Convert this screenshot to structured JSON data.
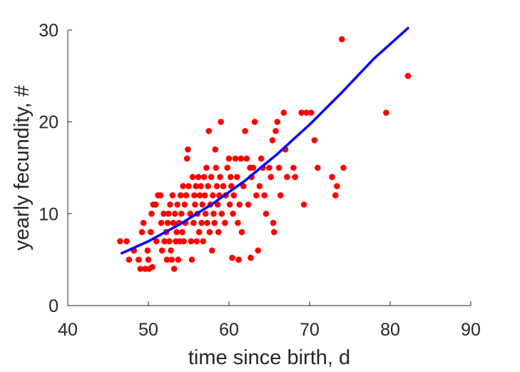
{
  "chart_data": {
    "type": "scatter",
    "xlabel": "time since birth, d",
    "ylabel": "yearly fecundity, #",
    "xlim": [
      40,
      90
    ],
    "ylim": [
      0,
      30
    ],
    "xticks": [
      40,
      50,
      60,
      70,
      80,
      90
    ],
    "yticks": [
      0,
      10,
      20,
      30
    ],
    "grid": false,
    "colors": {
      "points": "#ff0000",
      "fit": "#0000ff",
      "axes": "#262626"
    },
    "series": [
      {
        "type": "scatter",
        "points": [
          [
            46.5,
            7.0
          ],
          [
            47.3,
            7.0
          ],
          [
            47.6,
            5.0
          ],
          [
            48.2,
            6.0
          ],
          [
            48.8,
            5.0
          ],
          [
            49.0,
            4.0
          ],
          [
            49.2,
            8.0
          ],
          [
            49.4,
            9.0
          ],
          [
            49.6,
            4.0
          ],
          [
            49.9,
            6.0
          ],
          [
            50.1,
            4.0
          ],
          [
            50.0,
            5.0
          ],
          [
            50.3,
            8.0
          ],
          [
            50.5,
            4.2
          ],
          [
            50.4,
            10.0
          ],
          [
            50.6,
            11.0
          ],
          [
            50.9,
            11.0
          ],
          [
            51.0,
            7.0
          ],
          [
            51.2,
            12.0
          ],
          [
            51.5,
            12.0
          ],
          [
            51.6,
            9.0
          ],
          [
            51.7,
            6.0
          ],
          [
            51.9,
            10.0
          ],
          [
            52.0,
            7.0
          ],
          [
            52.2,
            8.0
          ],
          [
            52.3,
            5.0
          ],
          [
            52.4,
            9.0
          ],
          [
            52.5,
            10.0
          ],
          [
            52.6,
            7.0
          ],
          [
            52.7,
            11.0
          ],
          [
            52.8,
            6.0
          ],
          [
            52.9,
            5.0
          ],
          [
            53.0,
            12.0
          ],
          [
            53.1,
            9.0
          ],
          [
            53.2,
            4.0
          ],
          [
            53.3,
            10.0
          ],
          [
            53.4,
            7.0
          ],
          [
            53.5,
            8.0
          ],
          [
            53.6,
            11.0
          ],
          [
            53.7,
            5.0
          ],
          [
            53.8,
            9.0
          ],
          [
            53.9,
            7.0
          ],
          [
            54.0,
            12.0
          ],
          [
            54.1,
            10.0
          ],
          [
            54.2,
            8.0
          ],
          [
            54.3,
            13.0
          ],
          [
            54.4,
            7.0
          ],
          [
            54.5,
            11.0
          ],
          [
            54.6,
            9.0
          ],
          [
            54.7,
            12.0
          ],
          [
            54.8,
            16.0
          ],
          [
            54.9,
            17.0
          ],
          [
            55.0,
            13.0
          ],
          [
            55.2,
            10.0
          ],
          [
            55.3,
            7.0
          ],
          [
            55.4,
            5.0
          ],
          [
            55.5,
            14.0
          ],
          [
            55.6,
            9.0
          ],
          [
            55.7,
            12.0
          ],
          [
            55.8,
            11.0
          ],
          [
            55.9,
            13.0
          ],
          [
            56.0,
            7.0
          ],
          [
            56.1,
            10.0
          ],
          [
            56.2,
            14.0
          ],
          [
            56.3,
            8.0
          ],
          [
            56.4,
            12.0
          ],
          [
            56.5,
            13.0
          ],
          [
            56.6,
            9.0
          ],
          [
            56.7,
            11.0
          ],
          [
            56.8,
            7.0
          ],
          [
            56.9,
            14.0
          ],
          [
            57.0,
            12.0
          ],
          [
            57.1,
            10.0
          ],
          [
            57.2,
            15.0
          ],
          [
            57.3,
            9.0
          ],
          [
            57.4,
            13.0
          ],
          [
            57.5,
            19.0
          ],
          [
            57.6,
            8.0
          ],
          [
            57.7,
            11.0
          ],
          [
            57.8,
            14.0
          ],
          [
            57.9,
            6.0
          ],
          [
            58.0,
            12.0
          ],
          [
            58.1,
            10.0
          ],
          [
            58.2,
            9.0
          ],
          [
            58.3,
            17.0
          ],
          [
            58.4,
            15.0
          ],
          [
            58.5,
            13.0
          ],
          [
            58.6,
            11.0
          ],
          [
            58.7,
            8.0
          ],
          [
            58.8,
            12.0
          ],
          [
            58.9,
            14.0
          ],
          [
            59.0,
            20.0
          ],
          [
            59.1,
            10.0
          ],
          [
            59.3,
            13.0
          ],
          [
            59.5,
            9.0
          ],
          [
            59.6,
            12.0
          ],
          [
            59.8,
            15.0
          ],
          [
            60.0,
            16.0
          ],
          [
            60.1,
            11.0
          ],
          [
            60.2,
            14.0
          ],
          [
            60.3,
            13.0
          ],
          [
            60.4,
            5.2
          ],
          [
            60.5,
            10.0
          ],
          [
            60.6,
            12.0
          ],
          [
            60.8,
            16.0
          ],
          [
            61.0,
            14.0
          ],
          [
            61.1,
            9.0
          ],
          [
            61.2,
            5.0
          ],
          [
            61.3,
            11.0
          ],
          [
            61.5,
            16.0
          ],
          [
            61.6,
            8.0
          ],
          [
            61.8,
            13.0
          ],
          [
            62.0,
            19.0
          ],
          [
            62.2,
            16.0
          ],
          [
            62.4,
            11.0
          ],
          [
            62.6,
            15.0
          ],
          [
            62.7,
            5.2
          ],
          [
            62.8,
            14.0
          ],
          [
            63.0,
            15.0
          ],
          [
            63.2,
            20.0
          ],
          [
            63.4,
            12.0
          ],
          [
            63.6,
            6.0
          ],
          [
            63.8,
            13.0
          ],
          [
            64.0,
            16.0
          ],
          [
            64.2,
            15.0
          ],
          [
            64.4,
            12.0
          ],
          [
            64.6,
            10.0
          ],
          [
            65.0,
            15.0
          ],
          [
            65.2,
            14.0
          ],
          [
            65.4,
            18.0
          ],
          [
            65.5,
            9.0
          ],
          [
            65.6,
            8.0
          ],
          [
            65.8,
            19.0
          ],
          [
            66.0,
            20.0
          ],
          [
            66.2,
            15.0
          ],
          [
            66.4,
            12.0
          ],
          [
            66.8,
            21.0
          ],
          [
            67.0,
            17.0
          ],
          [
            67.2,
            14.0
          ],
          [
            68.0,
            15.0
          ],
          [
            68.2,
            14.0
          ],
          [
            69.0,
            21.0
          ],
          [
            69.3,
            11.0
          ],
          [
            69.6,
            21.0
          ],
          [
            70.2,
            21.0
          ],
          [
            70.6,
            18.0
          ],
          [
            71.0,
            15.0
          ],
          [
            72.8,
            14.0
          ],
          [
            73.2,
            12.0
          ],
          [
            73.4,
            13.0
          ],
          [
            74.0,
            29.0
          ],
          [
            74.2,
            15.0
          ],
          [
            79.5,
            21.0
          ],
          [
            82.2,
            25.0
          ]
        ]
      },
      {
        "type": "line",
        "x": [
          46.7,
          50,
          54,
          58,
          62,
          66,
          70,
          74,
          78,
          82.2
        ],
        "y": [
          5.7,
          7.0,
          8.9,
          11.1,
          13.6,
          16.5,
          19.7,
          23.2,
          26.9,
          30.2
        ]
      }
    ]
  }
}
